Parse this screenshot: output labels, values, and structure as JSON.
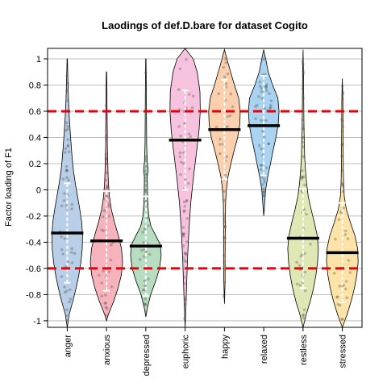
{
  "chart_data": {
    "type": "violin",
    "title": "Laodings of def.D.bare for dataset Cogito",
    "xlabel": "",
    "ylabel": "Factor loading of F1",
    "ylim": [
      -1.05,
      1.08
    ],
    "yticks": [
      -1,
      -0.8,
      -0.6,
      -0.4,
      -0.2,
      0,
      0.2,
      0.4,
      0.6,
      0.8,
      1
    ],
    "ytick_labels": [
      "-1",
      "-0.8",
      "-0.6",
      "-0.4",
      "-0.2",
      "0",
      "0.2",
      "0.4",
      "0.6",
      "0.8",
      "1"
    ],
    "grid": true,
    "reference_lines": [
      0.6,
      -0.6
    ],
    "reference_line_color": "#e8000b",
    "categories": [
      "anger",
      "anxious",
      "depressed",
      "euphoric",
      "happy",
      "relaxed",
      "restless",
      "stressed"
    ],
    "colors": [
      "#b9cfe8",
      "#f7b3bb",
      "#b7dcc0",
      "#f7c2dd",
      "#fbd0ae",
      "#a9d3f0",
      "#dfe8b5",
      "#fde3a7"
    ],
    "series": [
      {
        "means": [
          -0.33,
          -0.39,
          -0.43,
          0.38,
          0.46,
          0.49,
          -0.37,
          -0.48
        ]
      }
    ],
    "violins": [
      {
        "category": "anger",
        "mean": -0.33,
        "min": -1.05,
        "max": 1.0,
        "profile": [
          [
            -1.05,
            0.0
          ],
          [
            -0.95,
            0.12
          ],
          [
            -0.85,
            0.35
          ],
          [
            -0.75,
            0.55
          ],
          [
            -0.65,
            0.72
          ],
          [
            -0.55,
            0.85
          ],
          [
            -0.45,
            0.93
          ],
          [
            -0.35,
            0.95
          ],
          [
            -0.25,
            0.9
          ],
          [
            -0.15,
            0.78
          ],
          [
            -0.05,
            0.64
          ],
          [
            0.05,
            0.5
          ],
          [
            0.15,
            0.38
          ],
          [
            0.25,
            0.3
          ],
          [
            0.35,
            0.24
          ],
          [
            0.45,
            0.18
          ],
          [
            0.55,
            0.13
          ],
          [
            0.65,
            0.09
          ],
          [
            0.75,
            0.06
          ],
          [
            0.85,
            0.04
          ],
          [
            1.0,
            0.01
          ]
        ]
      },
      {
        "category": "anxious",
        "mean": -0.39,
        "min": -1.0,
        "max": 0.9,
        "profile": [
          [
            -1.0,
            0.0
          ],
          [
            -0.95,
            0.12
          ],
          [
            -0.85,
            0.45
          ],
          [
            -0.75,
            0.72
          ],
          [
            -0.65,
            0.92
          ],
          [
            -0.55,
            1.0
          ],
          [
            -0.45,
            0.93
          ],
          [
            -0.35,
            0.74
          ],
          [
            -0.25,
            0.5
          ],
          [
            -0.15,
            0.3
          ],
          [
            -0.05,
            0.18
          ],
          [
            0.05,
            0.12
          ],
          [
            0.15,
            0.09
          ],
          [
            0.25,
            0.07
          ],
          [
            0.35,
            0.05
          ],
          [
            0.45,
            0.05
          ],
          [
            0.55,
            0.04
          ],
          [
            0.65,
            0.03
          ],
          [
            0.75,
            0.03
          ],
          [
            0.9,
            0.01
          ]
        ]
      },
      {
        "category": "depressed",
        "mean": -0.43,
        "min": -0.97,
        "max": 1.0,
        "profile": [
          [
            -0.97,
            0.0
          ],
          [
            -0.9,
            0.1
          ],
          [
            -0.8,
            0.3
          ],
          [
            -0.7,
            0.6
          ],
          [
            -0.6,
            0.85
          ],
          [
            -0.5,
            0.95
          ],
          [
            -0.42,
            0.9
          ],
          [
            -0.35,
            0.62
          ],
          [
            -0.28,
            0.32
          ],
          [
            -0.2,
            0.18
          ],
          [
            -0.1,
            0.12
          ],
          [
            0.0,
            0.1
          ],
          [
            0.1,
            0.09
          ],
          [
            0.15,
            0.14
          ],
          [
            0.22,
            0.08
          ],
          [
            0.35,
            0.05
          ],
          [
            0.55,
            0.04
          ],
          [
            0.75,
            0.03
          ],
          [
            1.0,
            0.01
          ]
        ]
      },
      {
        "category": "euphoric",
        "mean": 0.38,
        "min": -1.05,
        "max": 1.08,
        "profile": [
          [
            -1.05,
            0.0
          ],
          [
            -0.9,
            0.05
          ],
          [
            -0.7,
            0.1
          ],
          [
            -0.5,
            0.16
          ],
          [
            -0.3,
            0.24
          ],
          [
            -0.1,
            0.35
          ],
          [
            0.1,
            0.52
          ],
          [
            0.3,
            0.72
          ],
          [
            0.45,
            0.86
          ],
          [
            0.6,
            0.94
          ],
          [
            0.75,
            0.92
          ],
          [
            0.9,
            0.75
          ],
          [
            1.0,
            0.5
          ],
          [
            1.08,
            0.0
          ]
        ]
      },
      {
        "category": "happy",
        "mean": 0.46,
        "min": -0.87,
        "max": 1.07,
        "profile": [
          [
            -0.87,
            0.0
          ],
          [
            -0.7,
            0.04
          ],
          [
            -0.5,
            0.04
          ],
          [
            -0.3,
            0.05
          ],
          [
            -0.1,
            0.07
          ],
          [
            0.0,
            0.12
          ],
          [
            0.1,
            0.22
          ],
          [
            0.2,
            0.4
          ],
          [
            0.3,
            0.6
          ],
          [
            0.4,
            0.82
          ],
          [
            0.5,
            0.95
          ],
          [
            0.6,
            0.98
          ],
          [
            0.7,
            0.88
          ],
          [
            0.8,
            0.62
          ],
          [
            0.9,
            0.38
          ],
          [
            1.0,
            0.15
          ],
          [
            1.07,
            0.0
          ]
        ]
      },
      {
        "category": "relaxed",
        "mean": 0.49,
        "min": -0.2,
        "max": 1.07,
        "profile": [
          [
            -0.2,
            0.0
          ],
          [
            -0.1,
            0.06
          ],
          [
            0.0,
            0.12
          ],
          [
            0.1,
            0.25
          ],
          [
            0.2,
            0.42
          ],
          [
            0.3,
            0.58
          ],
          [
            0.4,
            0.76
          ],
          [
            0.5,
            0.9
          ],
          [
            0.6,
            0.95
          ],
          [
            0.7,
            0.88
          ],
          [
            0.8,
            0.55
          ],
          [
            0.9,
            0.28
          ],
          [
            1.0,
            0.12
          ],
          [
            1.07,
            0.0
          ]
        ]
      },
      {
        "category": "restless",
        "mean": -0.37,
        "min": -1.05,
        "max": 1.07,
        "profile": [
          [
            -1.05,
            0.0
          ],
          [
            -0.95,
            0.2
          ],
          [
            -0.85,
            0.45
          ],
          [
            -0.75,
            0.65
          ],
          [
            -0.65,
            0.8
          ],
          [
            -0.55,
            0.9
          ],
          [
            -0.45,
            0.95
          ],
          [
            -0.35,
            0.88
          ],
          [
            -0.25,
            0.7
          ],
          [
            -0.15,
            0.5
          ],
          [
            -0.05,
            0.32
          ],
          [
            0.05,
            0.22
          ],
          [
            0.15,
            0.15
          ],
          [
            0.25,
            0.1
          ],
          [
            0.35,
            0.08
          ],
          [
            0.45,
            0.06
          ],
          [
            0.55,
            0.05
          ],
          [
            0.7,
            0.04
          ],
          [
            0.85,
            0.03
          ],
          [
            1.07,
            0.0
          ]
        ]
      },
      {
        "category": "stressed",
        "mean": -0.48,
        "min": -1.05,
        "max": 0.85,
        "profile": [
          [
            -1.05,
            0.0
          ],
          [
            -0.95,
            0.3
          ],
          [
            -0.85,
            0.55
          ],
          [
            -0.75,
            0.75
          ],
          [
            -0.65,
            0.9
          ],
          [
            -0.55,
            0.98
          ],
          [
            -0.45,
            0.95
          ],
          [
            -0.35,
            0.78
          ],
          [
            -0.25,
            0.5
          ],
          [
            -0.15,
            0.25
          ],
          [
            -0.05,
            0.12
          ],
          [
            0.05,
            0.08
          ],
          [
            0.15,
            0.06
          ],
          [
            0.3,
            0.05
          ],
          [
            0.5,
            0.04
          ],
          [
            0.7,
            0.03
          ],
          [
            0.85,
            0.0
          ]
        ]
      }
    ]
  }
}
